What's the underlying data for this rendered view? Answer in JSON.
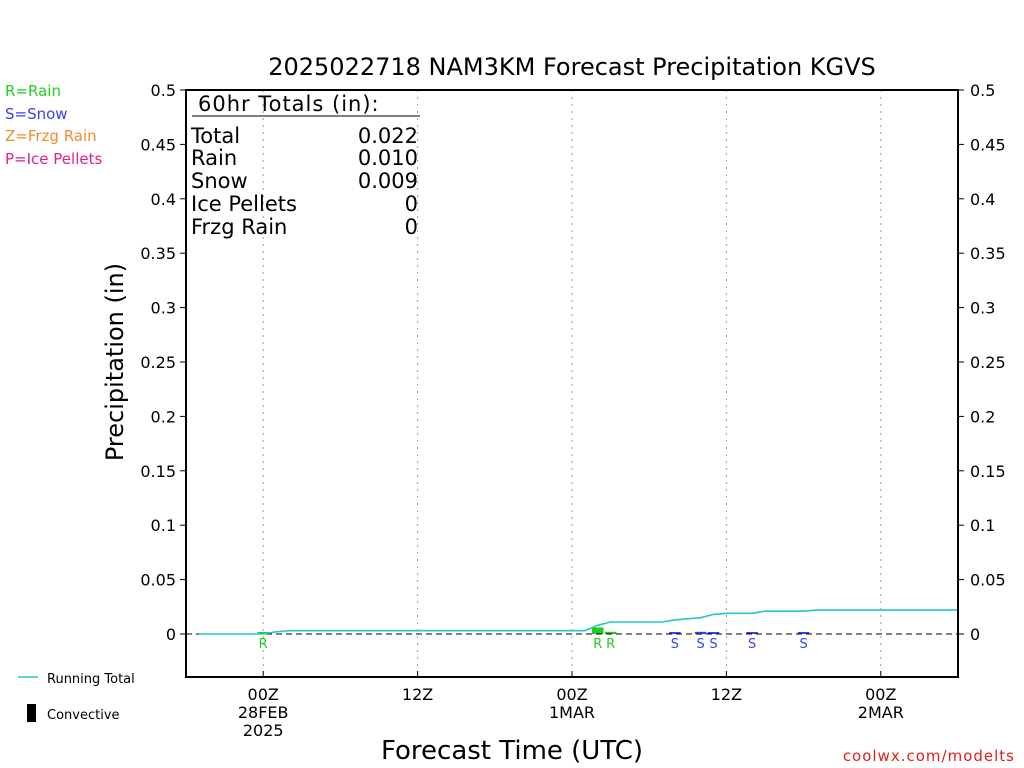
{
  "title": "2025022718 NAM3KM Forecast Precipitation KGVS",
  "legend_top": [
    {
      "label": "R=Rain",
      "color": "#22cc22"
    },
    {
      "label": "S=Snow",
      "color": "#3344ee"
    },
    {
      "label": "Z=Frzg Rain",
      "color": "#f08c2c"
    },
    {
      "label": "P=Ice Pellets",
      "color": "#e0208c"
    }
  ],
  "totals": {
    "heading": "60hr Totals (in):",
    "rows": [
      {
        "label": "Total",
        "value": "0.022"
      },
      {
        "label": "Rain",
        "value": "0.010"
      },
      {
        "label": "Snow",
        "value": "0.009"
      },
      {
        "label": "Ice Pellets",
        "value": "0"
      },
      {
        "label": "Frzg Rain",
        "value": "0"
      }
    ]
  },
  "legend_bottom": {
    "running_total": "Running Total",
    "convective": "Convective",
    "running_total_color": "#22c8c8"
  },
  "credit": "coolwx.com/modelts",
  "credit_color": "#e02020",
  "chart_data": {
    "type": "line",
    "title": "2025022718 NAM3KM Forecast Precipitation KGVS",
    "xlabel": "Forecast Time (UTC)",
    "ylabel": "Precipitation (in)",
    "x_units": "forecast hour from 2025-02-27 18Z",
    "xlim": [
      0,
      60
    ],
    "ylim": [
      -0.04,
      0.5
    ],
    "yticks": [
      0,
      0.05,
      0.1,
      0.15,
      0.2,
      0.25,
      0.3,
      0.35,
      0.4,
      0.45,
      0.5
    ],
    "ytick_labels": [
      "0",
      "0.05",
      "0.1",
      "0.15",
      "0.2",
      "0.25",
      "0.3",
      "0.35",
      "0.4",
      "0.45",
      "0.5"
    ],
    "xticks": [
      {
        "x": 6,
        "lines": [
          "00Z",
          "28FEB",
          "2025"
        ]
      },
      {
        "x": 18,
        "lines": [
          "12Z"
        ]
      },
      {
        "x": 30,
        "lines": [
          "00Z",
          "1MAR"
        ]
      },
      {
        "x": 42,
        "lines": [
          "12Z"
        ]
      },
      {
        "x": 54,
        "lines": [
          "00Z",
          "2MAR"
        ]
      }
    ],
    "grid": "vertical dotted at tick marks",
    "series": [
      {
        "name": "Running Total",
        "color": "#22c8c8",
        "x": [
          1,
          6,
          7,
          8,
          31,
          32,
          33,
          36,
          37,
          38,
          39,
          40,
          41,
          42,
          43,
          44,
          45,
          46,
          47,
          48,
          49,
          60
        ],
        "y": [
          0,
          0,
          0.002,
          0.003,
          0.003,
          0.008,
          0.011,
          0.011,
          0.011,
          0.013,
          0.014,
          0.015,
          0.018,
          0.019,
          0.019,
          0.019,
          0.021,
          0.021,
          0.021,
          0.021,
          0.022,
          0.022
        ]
      }
    ],
    "bars": [
      {
        "x": 6,
        "value": 0.001,
        "ptype": "R",
        "color": "#22cc22"
      },
      {
        "x": 32,
        "value": 0.006,
        "ptype": "R",
        "color": "#22cc22"
      },
      {
        "x": 33,
        "value": 0.002,
        "ptype": "R",
        "color": "#22cc22"
      },
      {
        "x": 38,
        "value": 0.001,
        "ptype": "S",
        "color": "#3344ee"
      },
      {
        "x": 40,
        "value": 0.002,
        "ptype": "S",
        "color": "#3344ee"
      },
      {
        "x": 41,
        "value": 0.001,
        "ptype": "S",
        "color": "#3344ee"
      },
      {
        "x": 44,
        "value": 0.001,
        "ptype": "S",
        "color": "#3344ee"
      },
      {
        "x": 48,
        "value": 0.001,
        "ptype": "S",
        "color": "#3344ee"
      }
    ]
  }
}
